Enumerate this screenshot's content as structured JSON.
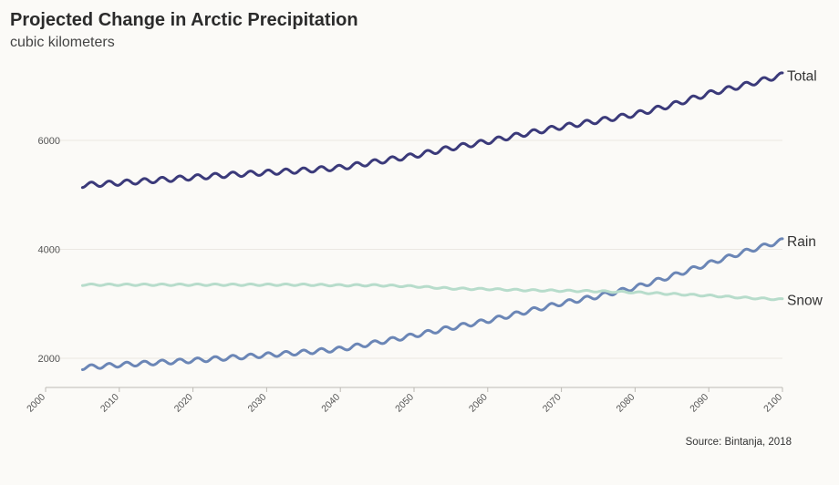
{
  "chart_data": {
    "type": "line",
    "title": "Projected Change in Arctic Precipitation",
    "subtitle": "cubic kilometers",
    "source": "Source: Bintanja, 2018",
    "xlabel": "",
    "ylabel": "",
    "xlim": [
      2000,
      2100
    ],
    "ylim": [
      1500,
      7400
    ],
    "x_ticks": [
      "2000",
      "2010",
      "2020",
      "2030",
      "2040",
      "2050",
      "2060",
      "2070",
      "2080",
      "2090",
      "2100"
    ],
    "y_ticks": [
      "2000",
      "4000",
      "6000"
    ],
    "grid": "horizontal",
    "x": [
      2005,
      2010,
      2015,
      2020,
      2025,
      2030,
      2035,
      2040,
      2045,
      2050,
      2055,
      2060,
      2065,
      2070,
      2075,
      2080,
      2085,
      2090,
      2095,
      2100
    ],
    "series": [
      {
        "name": "Total",
        "color": "#3b3a7a",
        "amplitude": 45,
        "values": [
          5180,
          5220,
          5270,
          5320,
          5370,
          5410,
          5450,
          5500,
          5610,
          5720,
          5860,
          5980,
          6120,
          6250,
          6360,
          6480,
          6650,
          6860,
          7020,
          7200
        ]
      },
      {
        "name": "Rain",
        "color": "#6b86b6",
        "amplitude": 40,
        "values": [
          1830,
          1880,
          1920,
          1960,
          2010,
          2060,
          2110,
          2170,
          2290,
          2420,
          2560,
          2690,
          2850,
          3010,
          3140,
          3300,
          3510,
          3740,
          3960,
          4160
        ]
      },
      {
        "name": "Snow",
        "color": "#b7dccb",
        "amplitude": 14,
        "values": [
          3350,
          3350,
          3350,
          3350,
          3350,
          3350,
          3350,
          3340,
          3340,
          3320,
          3280,
          3270,
          3250,
          3240,
          3230,
          3210,
          3180,
          3150,
          3110,
          3080
        ]
      }
    ]
  }
}
